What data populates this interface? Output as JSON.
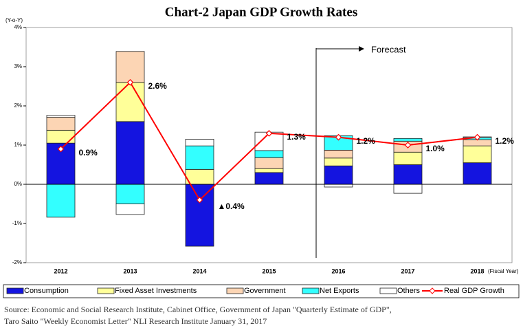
{
  "chart_data": {
    "type": "bar",
    "title": "Chart-2 Japan GDP Growth Rates",
    "y_label": "(Y-o-Y)",
    "x_label": "(Fiscal Year)",
    "annotation": "Forecast",
    "categories": [
      "2012",
      "2013",
      "2014",
      "2015",
      "2016",
      "2017",
      "2018"
    ],
    "stacked": true,
    "series": [
      {
        "name": "Consumption",
        "color": "#1414e0",
        "values": [
          1.05,
          1.6,
          -1.58,
          0.3,
          0.47,
          0.5,
          0.55
        ]
      },
      {
        "name": "Fixed Asset Investments",
        "color": "#ffff99",
        "values": [
          0.33,
          1.0,
          0.38,
          0.1,
          0.2,
          0.32,
          0.43
        ]
      },
      {
        "name": "Government",
        "color": "#fcd5b4",
        "values": [
          0.33,
          0.79,
          0.0,
          0.28,
          0.2,
          0.28,
          0.16
        ]
      },
      {
        "name": "Net Exports",
        "color": "#33ffff",
        "values": [
          -0.84,
          -0.5,
          0.6,
          0.18,
          0.37,
          0.07,
          0.05
        ]
      },
      {
        "name": "Others",
        "color": "#ffffff",
        "values": [
          0.05,
          -0.27,
          0.17,
          0.47,
          -0.07,
          -0.23,
          0.02
        ]
      }
    ],
    "line_series": {
      "name": "Real GDP Growth",
      "color": "#ff0000",
      "values": [
        0.9,
        2.6,
        -0.4,
        1.3,
        1.2,
        1.0,
        1.2
      ],
      "value_labels": [
        "0.9%",
        "2.6%",
        "▲0.4%",
        "1.3%",
        "1.2%",
        "1.0%",
        "1.2%"
      ]
    },
    "ylim": [
      -2,
      4
    ],
    "yticks": [
      {
        "value": -2,
        "label": "-2%"
      },
      {
        "value": -1,
        "label": "-1%"
      },
      {
        "value": 0,
        "label": "0%"
      },
      {
        "value": 1,
        "label": "1%"
      },
      {
        "value": 2,
        "label": "2%"
      },
      {
        "value": 3,
        "label": "3%"
      },
      {
        "value": 4,
        "label": "4%"
      }
    ],
    "grid": false,
    "legend": "bottom",
    "source": [
      "Source: Economic and Social Research Institute, Cabinet Office, Government of Japan \"Quarterly Estimate of GDP\",",
      "Taro Saito \"Weekly Economist Letter\" NLI Research Institute January 31, 2017"
    ]
  }
}
